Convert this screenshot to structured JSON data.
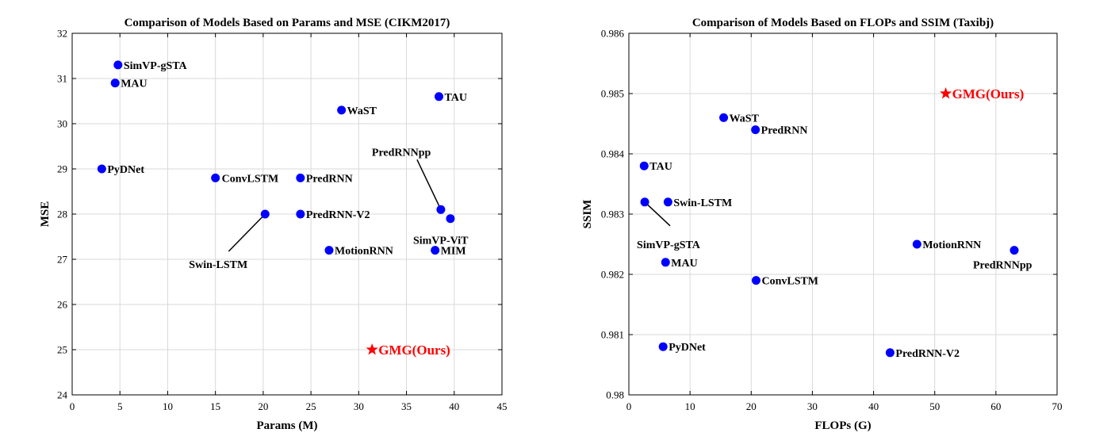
{
  "chart_data": [
    {
      "type": "scatter",
      "title": "Comparison of Models Based on Params and MSE (CIKM2017)",
      "xlabel": "Params (M)",
      "ylabel": "MSE",
      "xlim": [
        0,
        45
      ],
      "ylim": [
        24,
        32
      ],
      "xticks": [
        "0",
        "5",
        "10",
        "15",
        "20",
        "25",
        "30",
        "35",
        "40",
        "45"
      ],
      "yticks": [
        "24",
        "25",
        "26",
        "27",
        "28",
        "29",
        "30",
        "31",
        "32"
      ],
      "grid": true,
      "marker_color": "#0000ff",
      "highlight_color": "#ff0000",
      "points": [
        {
          "label": "SimVP-gSTA",
          "x": 4.8,
          "y": 31.3
        },
        {
          "label": "MAU",
          "x": 4.5,
          "y": 30.9
        },
        {
          "label": "TAU",
          "x": 38.4,
          "y": 30.6
        },
        {
          "label": "WaST",
          "x": 28.2,
          "y": 30.3
        },
        {
          "label": "PyDNet",
          "x": 3.1,
          "y": 29.0
        },
        {
          "label": "ConvLSTM",
          "x": 15.0,
          "y": 28.8
        },
        {
          "label": "PredRNN",
          "x": 23.9,
          "y": 28.8
        },
        {
          "label": "PredRNNpp",
          "x": 38.6,
          "y": 28.1
        },
        {
          "label": "Swin-LSTM",
          "x": 20.2,
          "y": 28.0
        },
        {
          "label": "PredRNN-V2",
          "x": 23.9,
          "y": 28.0
        },
        {
          "label": "SimVP-ViT",
          "x": 39.6,
          "y": 27.9
        },
        {
          "label": "MotionRNN",
          "x": 26.9,
          "y": 27.2
        },
        {
          "label": "MIM",
          "x": 38.0,
          "y": 27.2
        }
      ],
      "highlight": {
        "label": "GMG(Ours)",
        "x": 31.4,
        "y": 25.0
      }
    },
    {
      "type": "scatter",
      "title": "Comparison of Models Based on FLOPs and SSIM (Taxibj)",
      "xlabel": "FLOPs (G)",
      "ylabel": "SSIM",
      "xlim": [
        0,
        70
      ],
      "ylim": [
        0.98,
        0.986
      ],
      "xticks": [
        "0",
        "10",
        "20",
        "30",
        "40",
        "50",
        "60",
        "70"
      ],
      "yticks": [
        "0.98",
        "0.981",
        "0.982",
        "0.983",
        "0.984",
        "0.985",
        "0.986"
      ],
      "grid": true,
      "marker_color": "#0000ff",
      "highlight_color": "#ff0000",
      "points": [
        {
          "label": "WaST",
          "x": 15.5,
          "y": 0.9846
        },
        {
          "label": "PredRNN",
          "x": 20.7,
          "y": 0.9844
        },
        {
          "label": "TAU",
          "x": 2.5,
          "y": 0.9838
        },
        {
          "label": "Swin-LSTM",
          "x": 6.4,
          "y": 0.9832
        },
        {
          "label": "SimVP-gSTA",
          "x": 2.6,
          "y": 0.9832
        },
        {
          "label": "MotionRNN",
          "x": 47.1,
          "y": 0.9825
        },
        {
          "label": "PredRNNpp",
          "x": 63.0,
          "y": 0.9824
        },
        {
          "label": "MAU",
          "x": 6.0,
          "y": 0.9822
        },
        {
          "label": "ConvLSTM",
          "x": 20.8,
          "y": 0.9819
        },
        {
          "label": "PyDNet",
          "x": 5.6,
          "y": 0.9808
        },
        {
          "label": "PredRNN-V2",
          "x": 42.7,
          "y": 0.9807
        }
      ],
      "highlight": {
        "label": "GMG(Ours)",
        "x": 51.8,
        "y": 0.985
      }
    }
  ]
}
